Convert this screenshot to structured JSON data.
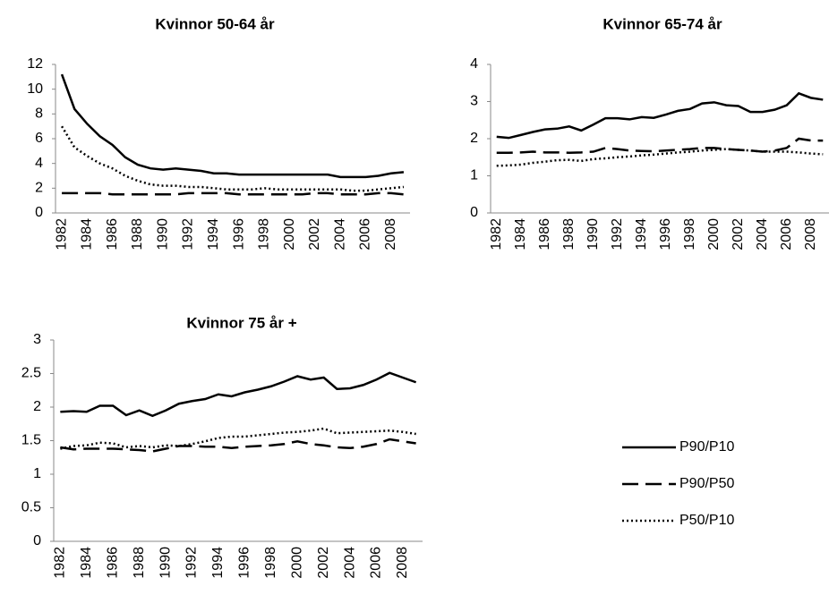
{
  "chart_data": [
    {
      "type": "line",
      "title": "Kvinnor 50-64 år",
      "categories": [
        "1982",
        null,
        "1984",
        null,
        "1986",
        null,
        "1988",
        null,
        "1990",
        null,
        "1992",
        null,
        "1994",
        null,
        "1996",
        null,
        "1998",
        null,
        "2000",
        null,
        "2002",
        null,
        "2004",
        null,
        "2006",
        null,
        "2008",
        null
      ],
      "ylim": [
        0,
        12
      ],
      "yticks": [
        0,
        2,
        4,
        6,
        8,
        10,
        12
      ],
      "grid": false,
      "series": [
        {
          "color": "#000000",
          "dash": "solid",
          "values": [
            11.2,
            8.4,
            7.2,
            6.2,
            5.5,
            4.5,
            3.9,
            3.6,
            3.5,
            3.6,
            3.5,
            3.4,
            3.2,
            3.2,
            3.1,
            3.1,
            3.1,
            3.1,
            3.1,
            3.1,
            3.1,
            3.1,
            2.9,
            2.9,
            2.9,
            3.0,
            3.2,
            3.3
          ]
        },
        {
          "color": "#000000",
          "dash": "dash",
          "values": [
            1.6,
            1.6,
            1.6,
            1.6,
            1.5,
            1.5,
            1.5,
            1.5,
            1.5,
            1.5,
            1.6,
            1.6,
            1.6,
            1.6,
            1.5,
            1.5,
            1.5,
            1.5,
            1.5,
            1.5,
            1.6,
            1.6,
            1.5,
            1.5,
            1.5,
            1.6,
            1.6,
            1.5
          ]
        },
        {
          "color": "#000000",
          "dash": "dot",
          "values": [
            7.0,
            5.3,
            4.6,
            4.0,
            3.6,
            3.0,
            2.6,
            2.3,
            2.2,
            2.2,
            2.1,
            2.1,
            2.0,
            1.9,
            1.9,
            1.9,
            2.0,
            1.9,
            1.9,
            1.9,
            1.9,
            1.9,
            1.9,
            1.8,
            1.8,
            1.9,
            2.0,
            2.1
          ]
        }
      ]
    },
    {
      "type": "line",
      "title": "Kvinnor 65-74 år",
      "categories": [
        "1982",
        null,
        "1984",
        null,
        "1986",
        null,
        "1988",
        null,
        "1990",
        null,
        "1992",
        null,
        "1994",
        null,
        "1996",
        null,
        "1998",
        null,
        "2000",
        null,
        "2002",
        null,
        "2004",
        null,
        "2006",
        null,
        "2008",
        null
      ],
      "ylim": [
        0,
        4
      ],
      "yticks": [
        0,
        1,
        2,
        3,
        4
      ],
      "grid": false,
      "series": [
        {
          "color": "#000000",
          "dash": "solid",
          "values": [
            2.05,
            2.02,
            2.1,
            2.18,
            2.25,
            2.27,
            2.33,
            2.22,
            2.38,
            2.55,
            2.55,
            2.52,
            2.58,
            2.56,
            2.65,
            2.75,
            2.8,
            2.95,
            2.98,
            2.9,
            2.88,
            2.72,
            2.72,
            2.78,
            2.9,
            3.22,
            3.1,
            3.05
          ]
        },
        {
          "color": "#000000",
          "dash": "dash",
          "values": [
            1.62,
            1.62,
            1.63,
            1.65,
            1.63,
            1.63,
            1.62,
            1.63,
            1.65,
            1.75,
            1.72,
            1.68,
            1.67,
            1.66,
            1.68,
            1.7,
            1.72,
            1.75,
            1.75,
            1.72,
            1.7,
            1.68,
            1.65,
            1.68,
            1.75,
            2.0,
            1.95,
            1.95
          ]
        },
        {
          "color": "#000000",
          "dash": "dot",
          "values": [
            1.27,
            1.28,
            1.3,
            1.35,
            1.38,
            1.42,
            1.43,
            1.4,
            1.45,
            1.47,
            1.5,
            1.52,
            1.55,
            1.57,
            1.6,
            1.63,
            1.65,
            1.68,
            1.7,
            1.72,
            1.7,
            1.68,
            1.65,
            1.65,
            1.65,
            1.63,
            1.6,
            1.58
          ]
        }
      ]
    },
    {
      "type": "line",
      "title": "Kvinnor 75 år +",
      "categories": [
        "1982",
        null,
        "1984",
        null,
        "1986",
        null,
        "1988",
        null,
        "1990",
        null,
        "1992",
        null,
        "1994",
        null,
        "1996",
        null,
        "1998",
        null,
        "2000",
        null,
        "2002",
        null,
        "2004",
        null,
        "2006",
        null,
        "2008",
        null
      ],
      "ylim": [
        0,
        3
      ],
      "yticks": [
        0,
        0.5,
        1,
        1.5,
        2,
        2.5,
        3
      ],
      "grid": false,
      "legend": "right",
      "series": [
        {
          "name": "P90/P10",
          "color": "#000000",
          "dash": "solid",
          "values": [
            1.93,
            1.94,
            1.93,
            2.02,
            2.02,
            1.88,
            1.95,
            1.87,
            1.95,
            2.05,
            2.09,
            2.12,
            2.19,
            2.16,
            2.22,
            2.26,
            2.31,
            2.38,
            2.46,
            2.41,
            2.44,
            2.27,
            2.28,
            2.33,
            2.41,
            2.51,
            2.44,
            2.37
          ]
        },
        {
          "name": "P90/P50",
          "color": "#000000",
          "dash": "dash",
          "values": [
            1.4,
            1.37,
            1.38,
            1.38,
            1.38,
            1.37,
            1.36,
            1.34,
            1.38,
            1.42,
            1.42,
            1.41,
            1.41,
            1.39,
            1.41,
            1.42,
            1.43,
            1.45,
            1.49,
            1.45,
            1.43,
            1.4,
            1.39,
            1.41,
            1.45,
            1.52,
            1.49,
            1.46
          ]
        },
        {
          "name": "P50/P10",
          "color": "#000000",
          "dash": "dot",
          "values": [
            1.38,
            1.42,
            1.43,
            1.47,
            1.46,
            1.4,
            1.42,
            1.4,
            1.43,
            1.42,
            1.45,
            1.49,
            1.54,
            1.56,
            1.56,
            1.58,
            1.6,
            1.62,
            1.63,
            1.65,
            1.68,
            1.61,
            1.62,
            1.63,
            1.64,
            1.65,
            1.63,
            1.6
          ]
        }
      ]
    }
  ]
}
